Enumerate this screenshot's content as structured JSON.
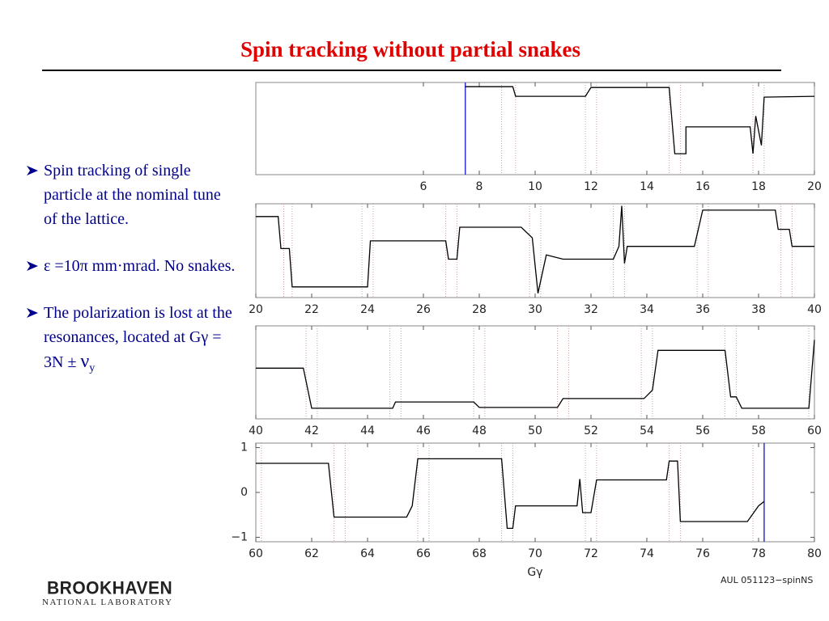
{
  "title": "Spin tracking without partial snakes",
  "bullets": [
    {
      "text": "Spin tracking of single particle at the nominal tune of the lattice."
    },
    {
      "text": "ε =10π mm·mrad. No snakes."
    },
    {
      "text": "The polarization is lost at the resonances, located at Gγ = 3N ± ",
      "symbol": "ν",
      "subscript": "y"
    }
  ],
  "logo": {
    "name": "BROOKHAVEN",
    "subtitle": "NATIONAL LABORATORY"
  },
  "chart_data": [
    {
      "type": "line",
      "xlim": [
        0,
        20
      ],
      "ylim": [
        -1.1,
        1.1
      ],
      "xticks": [
        6,
        8,
        10,
        12,
        14,
        16,
        18,
        20
      ],
      "marker_x": 7.5,
      "marker_color": "#3333cc",
      "resonances": [
        8.8,
        9.3,
        11.8,
        12.2,
        14.8,
        15.2,
        17.8,
        18.2
      ],
      "series": [
        {
          "color": "#000000",
          "x": [
            7.5,
            9.2,
            9.3,
            11.8,
            12.0,
            14.8,
            15.0,
            15.4,
            15.4,
            17.7,
            17.8,
            17.9,
            18.1,
            18.2,
            20.0
          ],
          "values": [
            1.0,
            1.0,
            0.77,
            0.77,
            0.98,
            0.98,
            -0.6,
            -0.6,
            0.04,
            0.04,
            -0.6,
            0.3,
            -0.4,
            0.75,
            0.77
          ]
        }
      ]
    },
    {
      "type": "line",
      "xlim": [
        20,
        40
      ],
      "ylim": [
        -1.1,
        1.1
      ],
      "xticks": [
        20,
        22,
        24,
        26,
        28,
        30,
        32,
        34,
        36,
        38,
        40
      ],
      "resonances": [
        21.0,
        21.3,
        23.8,
        24.2,
        26.8,
        27.2,
        29.8,
        30.2,
        32.8,
        33.2,
        35.8,
        36.2,
        38.8,
        39.2
      ],
      "series": [
        {
          "color": "#000000",
          "x": [
            20.0,
            20.8,
            20.9,
            21.2,
            21.3,
            24.0,
            24.1,
            26.8,
            26.9,
            27.2,
            27.3,
            29.5,
            29.9,
            30.1,
            30.4,
            31.0,
            32.8,
            33.0,
            33.1,
            33.2,
            33.3,
            35.7,
            36.0,
            38.6,
            38.7,
            39.1,
            39.2,
            40.0
          ],
          "values": [
            0.8,
            0.8,
            0.05,
            0.05,
            -0.85,
            -0.85,
            0.23,
            0.23,
            -0.2,
            -0.2,
            0.55,
            0.55,
            0.3,
            -1.0,
            -0.1,
            -0.2,
            -0.2,
            0.1,
            1.05,
            -0.3,
            0.1,
            0.1,
            0.95,
            0.95,
            0.5,
            0.5,
            0.1,
            0.1
          ]
        }
      ]
    },
    {
      "type": "line",
      "xlim": [
        40,
        60
      ],
      "ylim": [
        -1.1,
        1.1
      ],
      "xticks": [
        40,
        42,
        44,
        46,
        48,
        50,
        52,
        54,
        56,
        58,
        60
      ],
      "resonances": [
        41.8,
        42.2,
        44.8,
        45.2,
        47.8,
        48.2,
        50.8,
        51.2,
        53.8,
        54.2,
        56.8,
        57.2,
        59.8
      ],
      "series": [
        {
          "color": "#000000",
          "x": [
            40.0,
            41.7,
            42.0,
            44.9,
            45.0,
            47.8,
            48.0,
            50.8,
            51.0,
            53.9,
            54.2,
            54.4,
            56.8,
            57.0,
            57.2,
            57.4,
            59.8,
            60.0
          ],
          "values": [
            0.1,
            0.1,
            -0.85,
            -0.85,
            -0.7,
            -0.7,
            -0.83,
            -0.83,
            -0.62,
            -0.62,
            -0.42,
            0.52,
            0.52,
            -0.58,
            -0.58,
            -0.85,
            -0.85,
            0.77
          ]
        }
      ]
    },
    {
      "type": "line",
      "xlim": [
        60,
        80
      ],
      "ylim": [
        -1.1,
        1.1
      ],
      "xticks": [
        60,
        62,
        64,
        66,
        68,
        70,
        72,
        74,
        76,
        78,
        80
      ],
      "yticks": [
        {
          "value": -1,
          "label": "−1"
        },
        0,
        1
      ],
      "xlabel": "Gγ",
      "credit": "AUL 051123−spinNS",
      "marker_x": 78.2,
      "marker_color": "#3333cc",
      "resonances": [
        60.2,
        62.8,
        63.2,
        65.8,
        66.2,
        68.8,
        69.2,
        71.8,
        72.2,
        74.8,
        75.2,
        77.8,
        78.2
      ],
      "series": [
        {
          "color": "#000000",
          "x": [
            60.0,
            62.6,
            62.8,
            65.4,
            65.6,
            65.8,
            68.8,
            69.0,
            69.2,
            69.3,
            71.5,
            71.6,
            71.7,
            72.0,
            72.2,
            74.7,
            74.8,
            75.1,
            75.2,
            77.6,
            78.0,
            78.2
          ],
          "values": [
            0.65,
            0.65,
            -0.55,
            -0.55,
            -0.3,
            0.75,
            0.75,
            -0.8,
            -0.8,
            -0.3,
            -0.3,
            0.3,
            -0.45,
            -0.45,
            0.28,
            0.28,
            0.7,
            0.7,
            -0.65,
            -0.65,
            -0.3,
            -0.2
          ]
        }
      ]
    }
  ]
}
